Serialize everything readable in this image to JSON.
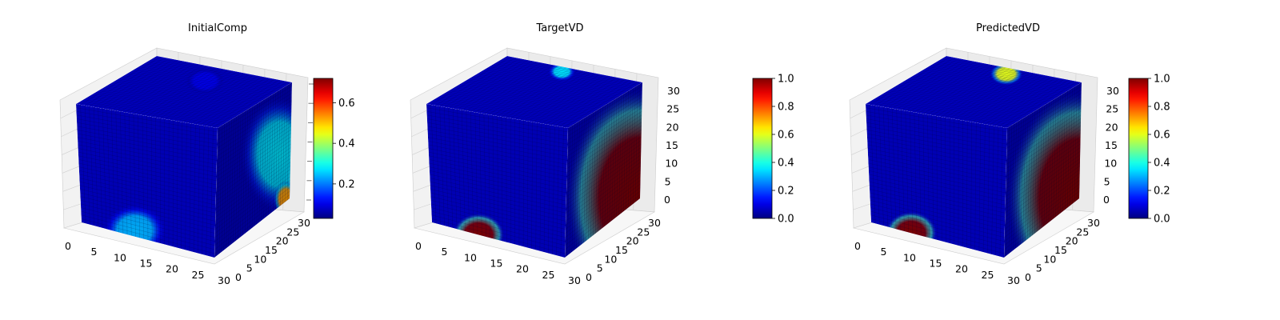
{
  "figure": {
    "background": "#ffffff",
    "colormap": "jet",
    "colormap_stops": [
      "#00007f",
      "#0000ff",
      "#007fff",
      "#00ffff",
      "#7fff7f",
      "#ffff00",
      "#ff7f00",
      "#ff0000",
      "#7f0000"
    ],
    "pane_color": "#f2f2f2",
    "grid_color": "#d0d0d0"
  },
  "chart_data": [
    {
      "type": "voxel-3d",
      "title": "InitialComp",
      "x_ticks": [
        "0",
        "5",
        "10",
        "15",
        "20",
        "25",
        "30"
      ],
      "y_ticks": [
        "0",
        "5",
        "10",
        "15",
        "20",
        "25",
        "30"
      ],
      "z_ticks": [],
      "colorbar": {
        "ticks": [
          "0.2",
          "0.4",
          "0.6"
        ],
        "tick_values": [
          0.2,
          0.4,
          0.6
        ],
        "range": [
          0.03,
          0.72
        ]
      },
      "front_blobs": [
        {
          "u": 0.4,
          "v": 0.95,
          "r": 0.22,
          "value": 0.3
        }
      ],
      "side_blobs": [
        {
          "u": 0.85,
          "v": 0.55,
          "r": 0.45,
          "value": 0.35
        },
        {
          "u": 0.95,
          "v": 0.98,
          "r": 0.14,
          "value": 0.72
        }
      ],
      "top_blobs": [
        {
          "u": 0.5,
          "v": 0.25,
          "r": 0.15,
          "value": 0.1
        }
      ]
    },
    {
      "type": "voxel-3d",
      "title": "TargetVD",
      "x_ticks": [
        "0",
        "5",
        "10",
        "15",
        "20",
        "25",
        "30"
      ],
      "y_ticks": [
        "0",
        "5",
        "10",
        "15",
        "20",
        "25",
        "30"
      ],
      "z_ticks": [
        "0",
        "5",
        "10",
        "15",
        "20",
        "25",
        "30"
      ],
      "colorbar": {
        "ticks": [
          "0.0",
          "0.2",
          "0.4",
          "0.6",
          "0.8",
          "1.0"
        ],
        "tick_values": [
          0.0,
          0.2,
          0.4,
          0.6,
          0.8,
          1.0
        ],
        "range": [
          0.0,
          1.0
        ]
      },
      "front_blobs": [
        {
          "u": 0.35,
          "v": 1.0,
          "r": 0.18,
          "value": 1.0
        }
      ],
      "side_blobs": [
        {
          "u": 1.0,
          "v": 1.0,
          "r": 0.85,
          "value": 1.0
        }
      ],
      "top_blobs": [
        {
          "u": 0.45,
          "v": 0.08,
          "r": 0.1,
          "value": 0.35
        }
      ]
    },
    {
      "type": "voxel-3d",
      "title": "PredictedVD",
      "x_ticks": [
        "0",
        "5",
        "10",
        "15",
        "20",
        "25",
        "30"
      ],
      "y_ticks": [
        "0",
        "5",
        "10",
        "15",
        "20",
        "25",
        "30"
      ],
      "z_ticks": [
        "0",
        "5",
        "10",
        "15",
        "20",
        "25",
        "30"
      ],
      "colorbar": {
        "ticks": [
          "0.0",
          "0.2",
          "0.4",
          "0.6",
          "0.8",
          "1.0"
        ],
        "tick_values": [
          0.0,
          0.2,
          0.4,
          0.6,
          0.8,
          1.0
        ],
        "range": [
          0.0,
          1.0
        ]
      },
      "front_blobs": [
        {
          "u": 0.3,
          "v": 1.0,
          "r": 0.18,
          "value": 1.0
        }
      ],
      "side_blobs": [
        {
          "u": 1.0,
          "v": 1.0,
          "r": 0.83,
          "value": 1.0
        }
      ],
      "top_blobs": [
        {
          "u": 0.5,
          "v": 0.1,
          "r": 0.12,
          "value": 0.6
        }
      ]
    }
  ]
}
